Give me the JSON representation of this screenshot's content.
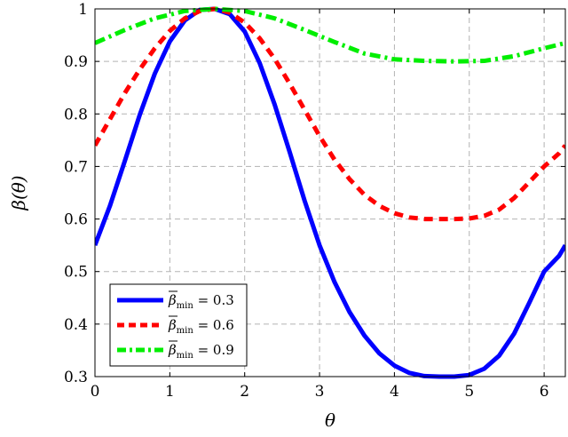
{
  "chart_data": {
    "type": "line",
    "xlabel": "θ",
    "ylabel": "β(θ)",
    "xlim": [
      0,
      6.2832
    ],
    "ylim": [
      0.3,
      1.0
    ],
    "xticks": [
      "0",
      "1",
      "2",
      "3",
      "4",
      "5",
      "6"
    ],
    "yticks": [
      "0.3",
      "0.4",
      "0.5",
      "0.6",
      "0.7",
      "0.8",
      "0.9",
      "1"
    ],
    "grid": true,
    "legend_position": "bottom-left",
    "series": [
      {
        "name": "β̅min = 0.3",
        "legend_symbol": "β",
        "legend_sub": "min",
        "legend_value": " = 0.3",
        "color": "#0000ff",
        "style": "solid",
        "x": [
          0,
          0.2,
          0.4,
          0.6,
          0.8,
          1.0,
          1.2,
          1.4,
          1.6,
          1.8,
          2.0,
          2.2,
          2.4,
          2.6,
          2.8,
          3.0,
          3.2,
          3.4,
          3.6,
          3.8,
          4.0,
          4.2,
          4.4,
          4.6,
          4.8,
          5.0,
          5.2,
          5.4,
          5.6,
          5.8,
          6.0,
          6.2,
          6.2832
        ],
        "y": [
          0.55,
          0.625,
          0.711,
          0.799,
          0.877,
          0.938,
          0.978,
          0.998,
          1.0,
          0.99,
          0.957,
          0.897,
          0.818,
          0.728,
          0.635,
          0.55,
          0.48,
          0.423,
          0.378,
          0.344,
          0.321,
          0.307,
          0.301,
          0.3,
          0.3,
          0.303,
          0.315,
          0.34,
          0.382,
          0.44,
          0.5,
          0.53,
          0.55
        ]
      },
      {
        "name": "β̅min = 0.6",
        "legend_symbol": "β",
        "legend_sub": "min",
        "legend_value": " = 0.6",
        "color": "#ff0000",
        "style": "dashed",
        "x": [
          0,
          0.2,
          0.4,
          0.6,
          0.8,
          1.0,
          1.2,
          1.4,
          1.6,
          1.8,
          2.0,
          2.2,
          2.4,
          2.6,
          2.8,
          3.0,
          3.2,
          3.4,
          3.6,
          3.8,
          4.0,
          4.2,
          4.4,
          4.6,
          4.8,
          5.0,
          5.2,
          5.4,
          5.6,
          5.8,
          6.0,
          6.2,
          6.2832
        ],
        "y": [
          0.74,
          0.79,
          0.84,
          0.885,
          0.925,
          0.958,
          0.982,
          0.996,
          1.0,
          0.993,
          0.974,
          0.944,
          0.905,
          0.858,
          0.808,
          0.758,
          0.713,
          0.676,
          0.646,
          0.625,
          0.611,
          0.603,
          0.6,
          0.6,
          0.6,
          0.601,
          0.606,
          0.618,
          0.64,
          0.67,
          0.7,
          0.725,
          0.74
        ]
      },
      {
        "name": "β̅min = 0.9",
        "legend_symbol": "β",
        "legend_sub": "min",
        "legend_value": " = 0.9",
        "color": "#00ee00",
        "style": "dashdot",
        "x": [
          0,
          0.4,
          0.8,
          1.2,
          1.6,
          2.0,
          2.4,
          2.8,
          3.2,
          3.6,
          4.0,
          4.4,
          4.8,
          5.2,
          5.6,
          6.0,
          6.2832
        ],
        "y": [
          0.935,
          0.96,
          0.982,
          0.996,
          1.0,
          0.996,
          0.982,
          0.96,
          0.937,
          0.915,
          0.904,
          0.901,
          0.9,
          0.901,
          0.91,
          0.925,
          0.935
        ]
      }
    ]
  }
}
